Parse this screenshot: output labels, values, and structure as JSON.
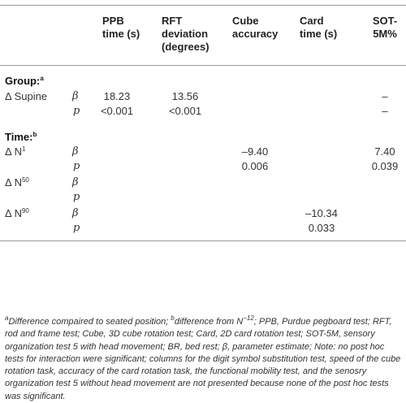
{
  "columns": {
    "ppb_line1": "PPB",
    "ppb_line2": "time (s)",
    "rft_line1": "RFT",
    "rft_line2": "deviation",
    "rft_line3": "(degrees)",
    "cube_line1": "Cube",
    "cube_line2": "accuracy",
    "card_line1": "Card",
    "card_line2": "time (s)",
    "sot_line1": "SOT-",
    "sot_line2": "5M%"
  },
  "group_section": {
    "label": "Group:",
    "label_sup": "a",
    "row_label": "Δ Supine",
    "beta": "β",
    "p": "p",
    "ppb_beta": "18.23",
    "ppb_p": "<0.001",
    "rft_beta": "13.56",
    "rft_p": "<0.001",
    "sot_beta": "–",
    "sot_p": "–"
  },
  "time_section": {
    "label": "Time:",
    "label_sup": "b",
    "n1": {
      "prefix": "Δ N",
      "sup": "1",
      "beta": "β",
      "p": "p",
      "cube_beta": "–9.40",
      "cube_p": "0.006",
      "sot_beta": "7.40",
      "sot_p": "0.039"
    },
    "n50": {
      "prefix": "Δ N",
      "sup": "50",
      "beta": "β",
      "p": "p"
    },
    "n90": {
      "prefix": "Δ N",
      "sup": "90",
      "beta": "β",
      "p": "p",
      "card_beta": "–10.34",
      "card_p": "0.033"
    }
  },
  "footnote": {
    "sup_a": "a",
    "part1": "Difference compaired to seated position; ",
    "sup_b": "b",
    "part2": "difference from N",
    "sup_n": "−12",
    "part3": "; PPB, Purdue pegboard test; RFT, rod and frame test; Cube, 3D cube rotation test; Card, 2D card rotation test; SOT-5M, sensory organization test 5 with head movement; BR, bed rest; β, parameter estimate; Note: no post hoc tests for interaction were significant; columns for the digit symbol substitution test, speed of the cube rotation task, accuracy of the card rotation task, the functional mobility test, and the senosry organization test 5 without head movement are not presented because none of the post hoc tests was significant."
  }
}
